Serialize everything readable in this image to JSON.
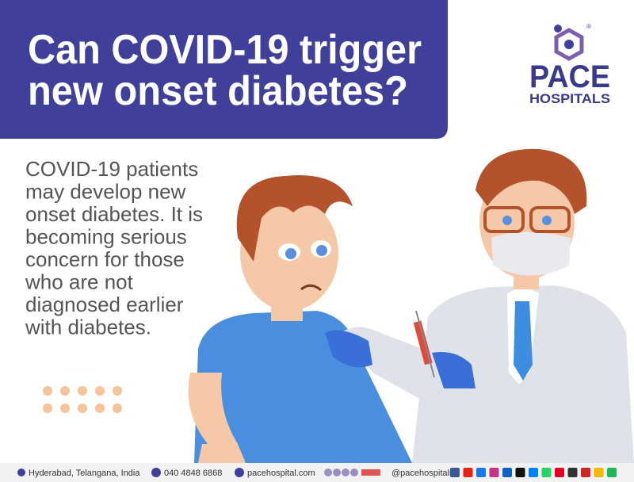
{
  "header": {
    "title_lines": [
      "Can COVID-19 trigger",
      "new onset diabetes?"
    ]
  },
  "logo": {
    "name": "PACE",
    "subtitle": "HOSPITALS",
    "mark": "®"
  },
  "body": {
    "lines": [
      "COVID-19 patients",
      "may develop new",
      "onset diabetes. It is",
      "becoming serious",
      "concern for those",
      "who are not",
      "diagnosed earlier",
      "with diabetes."
    ]
  },
  "footer": {
    "location": "Hyderabad, Telangana, India",
    "phone": "040 4848 6868",
    "website": "pacehospital.com",
    "handle": "@pacehospitals"
  }
}
